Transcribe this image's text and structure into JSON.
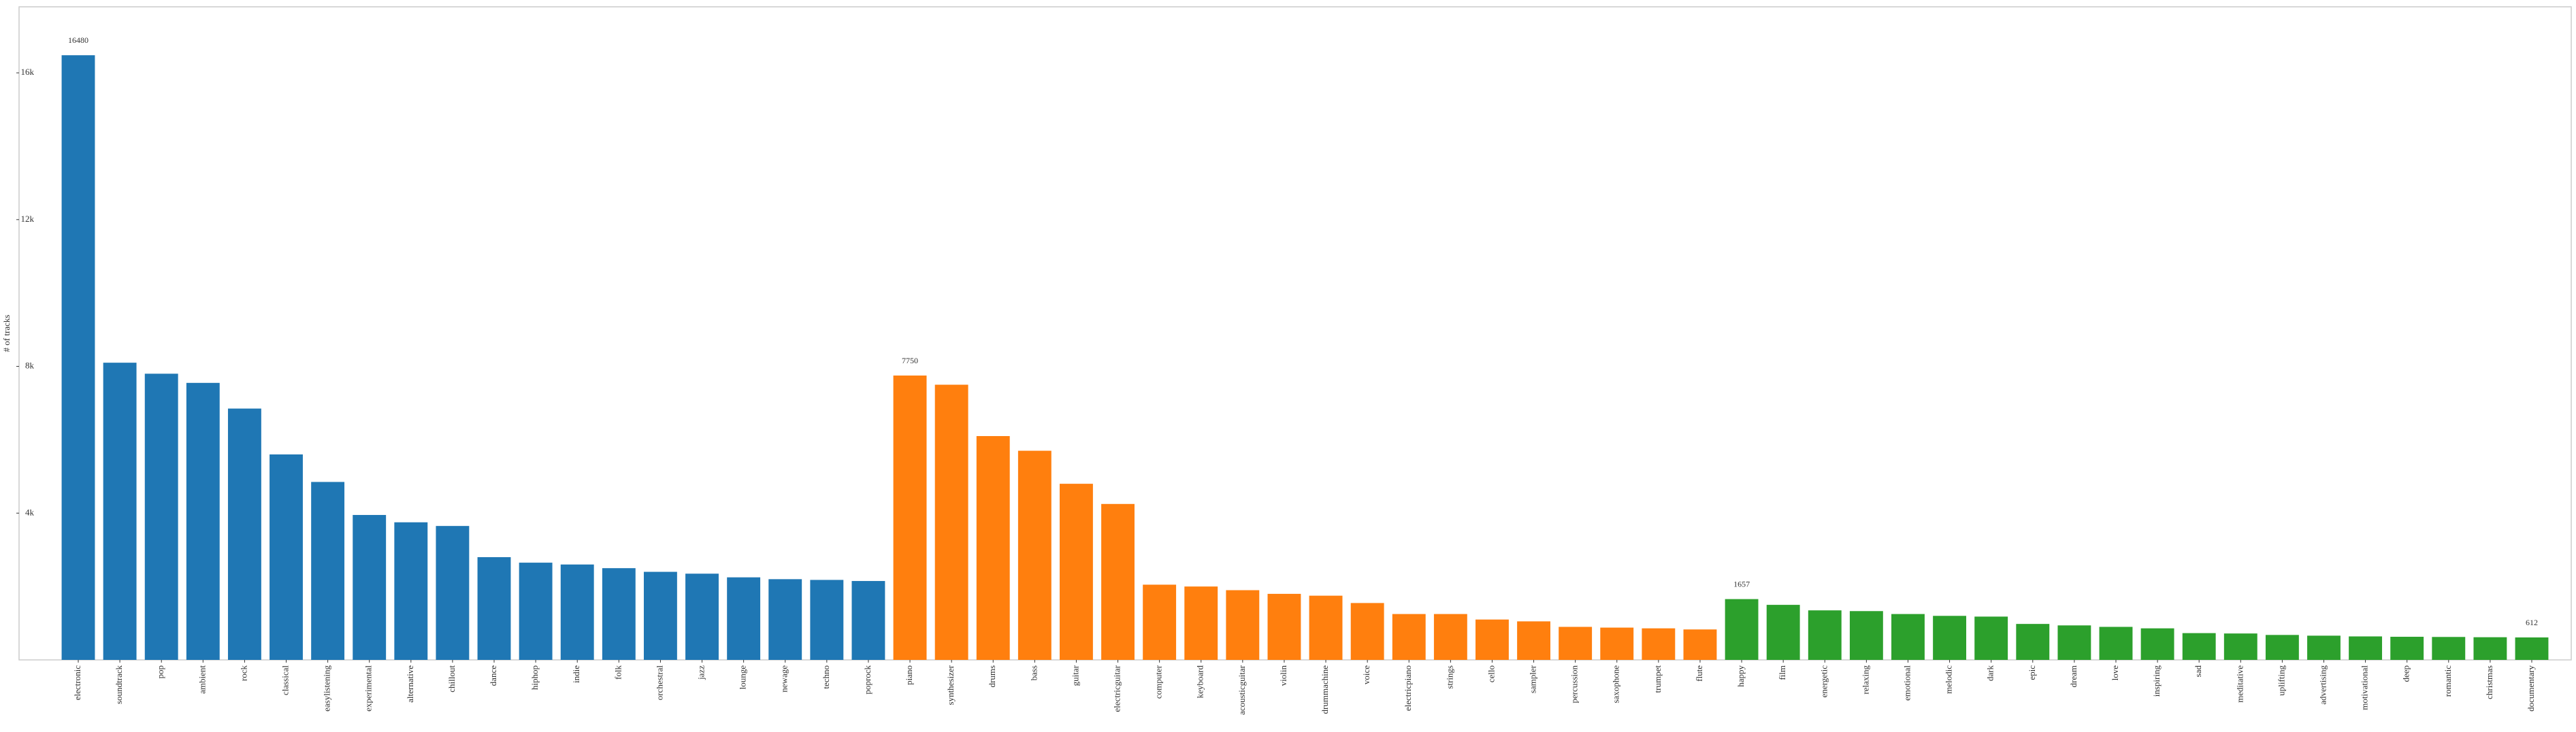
{
  "chart_data": {
    "type": "bar",
    "title": "",
    "xlabel": "",
    "ylabel": "# of tracks",
    "ylim": [
      0,
      17800
    ],
    "yticks": [
      {
        "value": 4000,
        "label": "4k"
      },
      {
        "value": 8000,
        "label": "8k"
      },
      {
        "value": 12000,
        "label": "12k"
      },
      {
        "value": 16000,
        "label": "16k"
      }
    ],
    "grid": false,
    "colors": {
      "genre": "#1f77b4",
      "instrument": "#ff7f0e",
      "mood": "#2ca02c"
    },
    "series": [
      {
        "group": "genre",
        "categories": [
          "electronic",
          "soundtrack",
          "pop",
          "ambient",
          "rock",
          "classical",
          "easylistening",
          "experimental",
          "alternative",
          "chillout",
          "dance",
          "hiphop",
          "indie",
          "folk",
          "orchestral",
          "jazz",
          "lounge",
          "newage",
          "techno",
          "poprock"
        ],
        "values": [
          16480,
          8100,
          7800,
          7550,
          6850,
          5600,
          4850,
          3950,
          3750,
          3650,
          2800,
          2650,
          2600,
          2500,
          2400,
          2350,
          2250,
          2200,
          2180,
          2150
        ]
      },
      {
        "group": "instrument",
        "categories": [
          "piano",
          "synthesizer",
          "drums",
          "bass",
          "guitar",
          "electricguitar",
          "computer",
          "keyboard",
          "acousticguitar",
          "violin",
          "drummachine",
          "voice",
          "electricpiano",
          "strings",
          "cello",
          "sampler",
          "percussion",
          "saxophone",
          "trumpet",
          "flute"
        ],
        "values": [
          7750,
          7500,
          6100,
          5700,
          4800,
          4250,
          2050,
          2000,
          1900,
          1800,
          1750,
          1550,
          1250,
          1250,
          1100,
          1050,
          900,
          880,
          860,
          830
        ]
      },
      {
        "group": "mood",
        "categories": [
          "happy",
          "film",
          "energetic",
          "relaxing",
          "emotional",
          "melodic",
          "dark",
          "epic",
          "dream",
          "love",
          "inspiring",
          "sad",
          "meditative",
          "uplifting",
          "advertising",
          "motivational",
          "deep",
          "romantic",
          "christmas",
          "documentary"
        ],
        "values": [
          1657,
          1500,
          1350,
          1330,
          1250,
          1200,
          1180,
          980,
          940,
          900,
          860,
          730,
          720,
          680,
          660,
          640,
          630,
          625,
          618,
          612
        ]
      }
    ],
    "data_labels": [
      {
        "category": "electronic",
        "text": "16480"
      },
      {
        "category": "piano",
        "text": "7750"
      },
      {
        "category": "happy",
        "text": "1657"
      },
      {
        "category": "documentary",
        "text": "612"
      }
    ]
  }
}
